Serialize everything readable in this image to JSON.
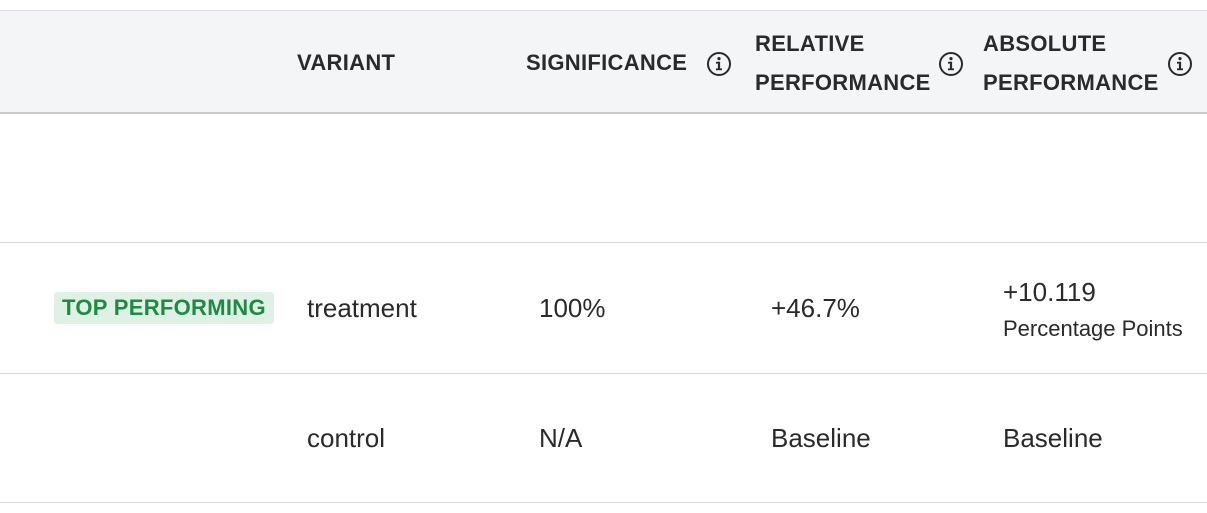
{
  "header": {
    "variant": "VARIANT",
    "significance": "SIGNIFICANCE",
    "relative_line1": "RELATIVE",
    "relative_line2": "PERFORMANCE",
    "absolute_line1": "ABSOLUTE",
    "absolute_line2": "PERFORMANCE"
  },
  "rows": [
    {
      "badge": "TOP PERFORMING",
      "variant": "treatment",
      "significance": "100%",
      "relative": "+46.7%",
      "absolute": "+10.119",
      "absolute_unit": "Percentage Points"
    },
    {
      "badge": "",
      "variant": "control",
      "significance": "N/A",
      "relative": "Baseline",
      "absolute": "Baseline",
      "absolute_unit": ""
    }
  ],
  "colors": {
    "header_bg": "#f4f5f7",
    "badge_bg": "#dff1e4",
    "badge_text": "#1e8a45"
  },
  "icons": {
    "info": "info-circle-icon"
  }
}
